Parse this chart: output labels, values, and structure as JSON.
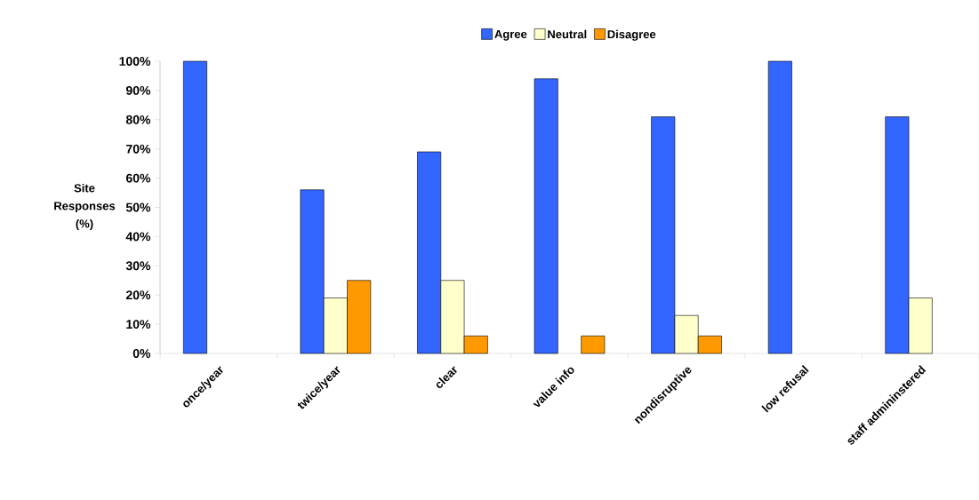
{
  "chart_data": {
    "type": "bar",
    "ylabel": "Site Responses (%)",
    "categories": [
      "once/year",
      "twice/year",
      "clear",
      "value info",
      "nondisruptive",
      "low refusal",
      "staff admininstered"
    ],
    "series": [
      {
        "name": "Agree",
        "color": "#3366ff",
        "values": [
          100,
          56,
          69,
          94,
          81,
          100,
          81
        ]
      },
      {
        "name": "Neutral",
        "color": "#ffffcc",
        "values": [
          null,
          19,
          25,
          null,
          13,
          null,
          19
        ]
      },
      {
        "name": "Disagree",
        "color": "#ff9900",
        "values": [
          null,
          25,
          6,
          6,
          6,
          null,
          null
        ]
      }
    ],
    "ylim": [
      0,
      100
    ],
    "yticks": [
      {
        "value": 0,
        "label": "0%"
      },
      {
        "value": 10,
        "label": "10%"
      },
      {
        "value": 20,
        "label": "20%"
      },
      {
        "value": 30,
        "label": "30%"
      },
      {
        "value": 40,
        "label": "40%"
      },
      {
        "value": 50,
        "label": "50%"
      },
      {
        "value": 60,
        "label": "60%"
      },
      {
        "value": 70,
        "label": "70%"
      },
      {
        "value": 80,
        "label": "80%"
      },
      {
        "value": 90,
        "label": "90%"
      },
      {
        "value": 100,
        "label": "100%"
      }
    ],
    "legend": "top",
    "grid": false
  }
}
